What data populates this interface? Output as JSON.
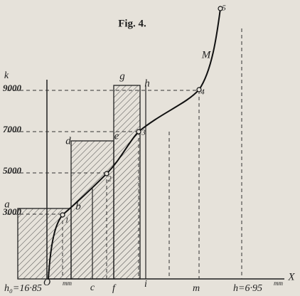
{
  "figure": {
    "title": "Fig. 4.",
    "axis": {
      "origin": "O",
      "x": "X",
      "top": "k"
    },
    "y_labels": [
      "9000",
      "7000",
      "5000",
      "3000"
    ],
    "points": [
      "1",
      "2",
      "3",
      "4",
      "5"
    ],
    "letters": [
      "a",
      "b",
      "d",
      "e",
      "g",
      "h",
      "M"
    ],
    "x_labels": [
      "c",
      "f",
      "i",
      "m"
    ],
    "h0_value": "h₀=16·85",
    "h0_unit": "mm",
    "h_value": "h=6·95",
    "h_unit": "mm"
  }
}
